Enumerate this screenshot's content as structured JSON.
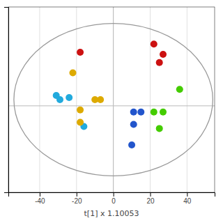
{
  "chart_data": {
    "type": "scatter",
    "xlabel": "t[1] x 1.10053",
    "xlim": [
      -57,
      55
    ],
    "ylim": [
      -42,
      48
    ],
    "xticks": [
      -40,
      -20,
      0,
      20,
      40
    ],
    "tick_labels": "x",
    "grid": true,
    "reference_lines": {
      "x": 0,
      "y": 0
    },
    "ellipse": {
      "cx": 0,
      "cy": 3,
      "width": 108,
      "height": 74
    },
    "x": [
      -18,
      22,
      27,
      25,
      -31,
      -29,
      -24,
      -16,
      -22,
      -18,
      -18,
      -10,
      -7,
      11,
      15,
      11,
      10,
      36,
      22,
      27,
      25
    ],
    "values": [
      26,
      30,
      25,
      21,
      5,
      3,
      4,
      -10,
      16,
      -2,
      -8,
      3,
      3,
      -3,
      -3,
      -9,
      -19,
      8,
      -3,
      -3,
      -11
    ],
    "colors": [
      "#cc1111",
      "#cc1111",
      "#cc1111",
      "#cc1111",
      "#22aadd",
      "#22aadd",
      "#22aadd",
      "#22aadd",
      "#ddaa00",
      "#ddaa00",
      "#ddaa00",
      "#ddaa00",
      "#ddaa00",
      "#2255cc",
      "#2255cc",
      "#2255cc",
      "#2255cc",
      "#44cc00",
      "#44cc00",
      "#44cc00",
      "#44cc00"
    ]
  }
}
